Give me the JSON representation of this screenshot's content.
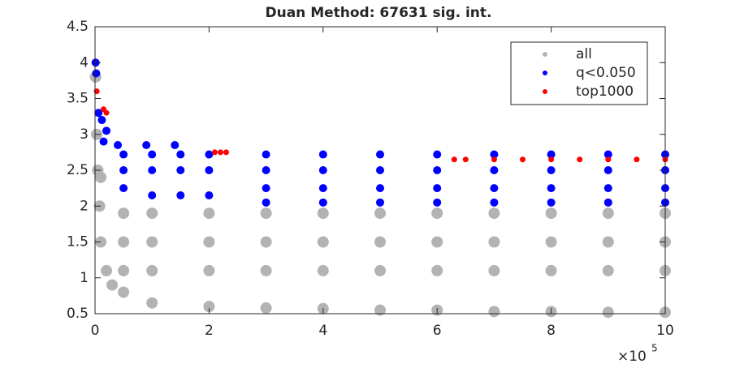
{
  "chart_data": {
    "type": "scatter",
    "title": "Duan Method: 67631 sig. int.",
    "x_multiplier": {
      "base": "×10",
      "exponent": "5"
    },
    "xlim": [
      0,
      10
    ],
    "xticks": [
      0,
      2,
      4,
      6,
      8,
      10
    ],
    "ylim": [
      0.5,
      4.5
    ],
    "yticks": [
      0.5,
      1,
      1.5,
      2,
      2.5,
      3,
      3.5,
      4,
      4.5
    ],
    "legend": "upper right",
    "series": [
      {
        "name": "all",
        "color": "#b3b3b3",
        "x": [
          0.01,
          0.03,
          0.05,
          0.08,
          0.1,
          0.2,
          0.3,
          0.1,
          0.5,
          1,
          2,
          3,
          4,
          5,
          6,
          7,
          8,
          9,
          10,
          0.5,
          1,
          2,
          3,
          4,
          5,
          6,
          7,
          8,
          9,
          10,
          0.5,
          1,
          2,
          3,
          4,
          5,
          6,
          7,
          8,
          9,
          10,
          0.5,
          1,
          2,
          3,
          4,
          5,
          6,
          7,
          8,
          9,
          10
        ],
        "values": [
          3.8,
          3.0,
          2.5,
          2.0,
          1.5,
          1.1,
          0.9,
          2.4,
          0.8,
          0.65,
          0.6,
          0.58,
          0.57,
          0.55,
          0.55,
          0.53,
          0.53,
          0.52,
          0.52,
          1.1,
          1.1,
          1.1,
          1.1,
          1.1,
          1.1,
          1.1,
          1.1,
          1.1,
          1.1,
          1.1,
          1.5,
          1.5,
          1.5,
          1.5,
          1.5,
          1.5,
          1.5,
          1.5,
          1.5,
          1.5,
          1.5,
          1.9,
          1.9,
          1.9,
          1.9,
          1.9,
          1.9,
          1.9,
          1.9,
          1.9,
          1.9,
          1.9
        ]
      },
      {
        "name": "q<0.050",
        "color": "#0000ff",
        "x": [
          0.01,
          0.02,
          0.06,
          0.12,
          0.2,
          0.15,
          0.4,
          0.9,
          1.4,
          0.5,
          1,
          1.5,
          2,
          3,
          4,
          5,
          6,
          7,
          8,
          9,
          10,
          0.5,
          1,
          1.5,
          2,
          3,
          4,
          5,
          6,
          7,
          8,
          9,
          10,
          0.5,
          1,
          1.5,
          2,
          3,
          4,
          5,
          6,
          7,
          8,
          9,
          10,
          3,
          4,
          5,
          6,
          7,
          8,
          9,
          10
        ],
        "values": [
          4.0,
          3.85,
          3.3,
          3.2,
          3.05,
          2.9,
          2.85,
          2.85,
          2.85,
          2.25,
          2.15,
          2.15,
          2.15,
          2.25,
          2.25,
          2.25,
          2.25,
          2.25,
          2.25,
          2.25,
          2.25,
          2.5,
          2.5,
          2.5,
          2.5,
          2.5,
          2.5,
          2.5,
          2.5,
          2.5,
          2.5,
          2.5,
          2.5,
          2.72,
          2.72,
          2.72,
          2.72,
          2.72,
          2.72,
          2.72,
          2.72,
          2.72,
          2.72,
          2.72,
          2.72,
          2.05,
          2.05,
          2.05,
          2.05,
          2.05,
          2.05,
          2.05,
          2.05
        ]
      },
      {
        "name": "top1000",
        "color": "#ff0000",
        "x": [
          0.03,
          0.15,
          0.2,
          2.1,
          2.2,
          2.3,
          6.3,
          6.5,
          7,
          7.5,
          8,
          8.5,
          9,
          9.5,
          10
        ],
        "values": [
          3.6,
          3.35,
          3.3,
          2.75,
          2.75,
          2.75,
          2.65,
          2.65,
          2.65,
          2.65,
          2.65,
          2.65,
          2.65,
          2.65,
          2.65
        ]
      }
    ]
  }
}
